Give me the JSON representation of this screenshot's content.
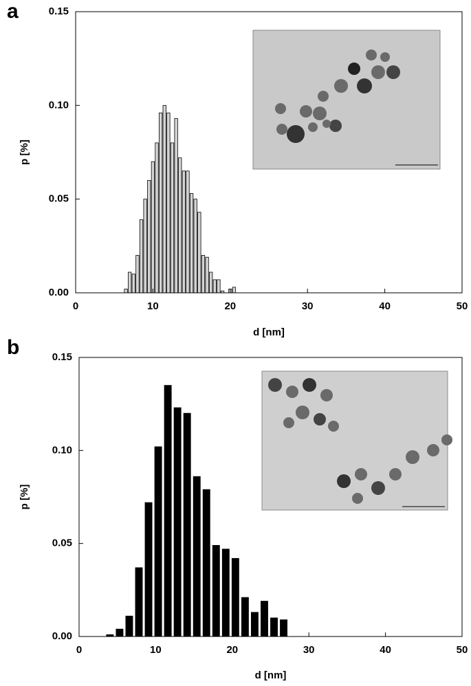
{
  "chart_data": [
    {
      "type": "histogram",
      "panel": "a",
      "xlabel": "d [nm]",
      "ylabel": "p [%]",
      "color": "#d4d4d4",
      "bins": [
        6.25,
        6.75,
        7.25,
        7.75,
        8.25,
        8.75,
        9.25,
        9.75,
        10.25,
        10.75,
        11.25,
        11.75,
        12.25,
        12.75,
        13.25,
        13.75,
        14.25,
        14.75,
        15.25,
        15.75,
        16.25,
        16.75,
        17.25,
        17.75,
        18.25,
        18.75,
        19.25,
        19.75,
        20.25,
        20.75
      ],
      "values": [
        0.002,
        0.011,
        0.01,
        0.02,
        0.039,
        0.05,
        0.06,
        0.07,
        0.08,
        0.096,
        0.1,
        0.096,
        0.08,
        0.093,
        0.072,
        0.065,
        0.065,
        0.053,
        0.05,
        0.043,
        0.02,
        0.019,
        0.011,
        0.007,
        0.007,
        0.001,
        0.0,
        0.002,
        0.003
      ],
      "xlim": [
        0,
        50
      ],
      "xticks": [
        0,
        10,
        20,
        30,
        40,
        50
      ],
      "ylim": [
        0,
        0.15
      ],
      "yticks": [
        {
          "value": 0,
          "label": "0.00"
        },
        {
          "value": 0.05,
          "label": "0.05"
        },
        {
          "value": 0.1,
          "label": "0.10"
        },
        {
          "value": 0.15,
          "label": "0.15"
        }
      ]
    },
    {
      "type": "histogram",
      "panel": "b",
      "xlabel": "d [nm]",
      "ylabel": "p [%]",
      "color": "#000000",
      "bins": [
        3.4,
        4.66,
        5.92,
        7.18,
        8.44,
        9.7,
        10.96,
        12.22,
        13.48,
        14.74,
        16.0,
        17.26,
        18.52,
        19.78,
        21.04,
        22.3,
        23.56,
        24.82,
        26.08,
        27.34
      ],
      "values": [
        0.001,
        0.004,
        0.011,
        0.037,
        0.072,
        0.102,
        0.135,
        0.123,
        0.12,
        0.086,
        0.079,
        0.049,
        0.047,
        0.042,
        0.021,
        0.013,
        0.019,
        0.01,
        0.009
      ],
      "xlim": [
        0,
        50
      ],
      "xticks": [
        0,
        10,
        20,
        30,
        40,
        50
      ],
      "ylim": [
        0,
        0.15
      ],
      "yticks": [
        {
          "value": 0,
          "label": "0.00"
        },
        {
          "value": 0.05,
          "label": "0.05"
        },
        {
          "value": 0.1,
          "label": "0.10"
        },
        {
          "value": 0.15,
          "label": "0.15"
        }
      ]
    }
  ]
}
